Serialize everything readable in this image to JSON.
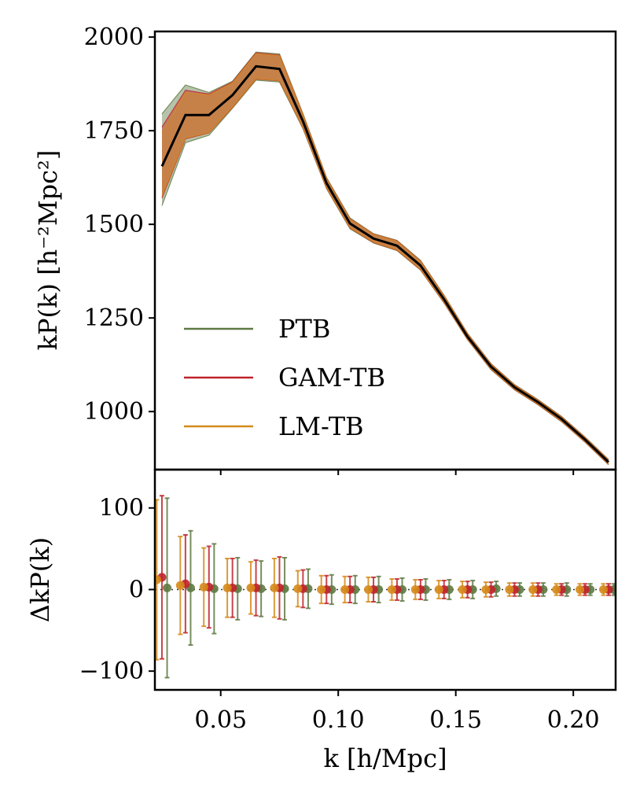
{
  "chart_data": [
    {
      "type": "line",
      "panel": "top",
      "xlabel": "",
      "ylabel": "kP(k) [h⁻²Mpc²]",
      "xlim": [
        0.022,
        0.218
      ],
      "ylim": [
        845,
        2015
      ],
      "yticks": [
        1000,
        1250,
        1500,
        1750,
        2000
      ],
      "yticklabels": [
        "1000",
        "1250",
        "1500",
        "1750",
        "2000"
      ],
      "legend_position": "lower-left",
      "x": [
        0.025,
        0.035,
        0.045,
        0.055,
        0.065,
        0.075,
        0.085,
        0.095,
        0.105,
        0.115,
        0.125,
        0.135,
        0.145,
        0.155,
        0.165,
        0.175,
        0.185,
        0.195,
        0.205,
        0.215
      ],
      "truth": {
        "name": "truth",
        "color": "#000000",
        "values": [
          1655,
          1792,
          1792,
          1845,
          1922,
          1915,
          1775,
          1610,
          1502,
          1462,
          1443,
          1390,
          1300,
          1200,
          1120,
          1065,
          1025,
          980,
          925,
          865
        ]
      },
      "series": [
        {
          "name": "PTB",
          "color": "#5e7a43",
          "lower": [
            1550,
            1718,
            1738,
            1810,
            1885,
            1880,
            1755,
            1595,
            1488,
            1450,
            1430,
            1378,
            1290,
            1192,
            1112,
            1058,
            1018,
            973,
            918,
            858
          ],
          "upper": [
            1795,
            1872,
            1852,
            1882,
            1960,
            1955,
            1795,
            1625,
            1517,
            1475,
            1457,
            1404,
            1311,
            1209,
            1128,
            1072,
            1032,
            987,
            932,
            872
          ]
        },
        {
          "name": "GAM-TB",
          "color": "#c0232b",
          "lower": [
            1570,
            1728,
            1744,
            1812,
            1888,
            1883,
            1757,
            1597,
            1490,
            1451,
            1431,
            1379,
            1291,
            1193,
            1113,
            1059,
            1019,
            974,
            919,
            859
          ],
          "upper": [
            1760,
            1858,
            1848,
            1880,
            1958,
            1952,
            1793,
            1623,
            1515,
            1474,
            1456,
            1402,
            1310,
            1208,
            1127,
            1071,
            1031,
            986,
            931,
            871
          ]
        },
        {
          "name": "LM-TB",
          "color": "#d58a1a",
          "lower": [
            1575,
            1730,
            1745,
            1813,
            1889,
            1884,
            1758,
            1598,
            1491,
            1452,
            1432,
            1380,
            1292,
            1194,
            1114,
            1060,
            1020,
            975,
            920,
            860
          ],
          "upper": [
            1745,
            1852,
            1845,
            1878,
            1956,
            1950,
            1792,
            1622,
            1514,
            1473,
            1455,
            1401,
            1309,
            1207,
            1126,
            1070,
            1030,
            985,
            930,
            870
          ]
        }
      ]
    },
    {
      "type": "scatter",
      "panel": "bottom",
      "xlabel": "k [h/Mpc]",
      "ylabel": "ΔkP(k)",
      "xlim": [
        0.022,
        0.218
      ],
      "ylim": [
        -123,
        147
      ],
      "xticks": [
        0.05,
        0.1,
        0.15,
        0.2
      ],
      "xticklabels": [
        "0.05",
        "0.10",
        "0.15",
        "0.20"
      ],
      "yticks": [
        -100,
        0,
        100
      ],
      "yticklabels": [
        "−100",
        "0",
        "100"
      ],
      "reference_line": 0,
      "x": [
        0.025,
        0.035,
        0.045,
        0.055,
        0.065,
        0.075,
        0.085,
        0.095,
        0.105,
        0.115,
        0.125,
        0.135,
        0.145,
        0.155,
        0.165,
        0.175,
        0.185,
        0.195,
        0.205,
        0.215
      ],
      "x_offsets": {
        "PTB": 0.0022,
        "GAM-TB": 0.0,
        "LM-TB": -0.0022
      },
      "series": [
        {
          "name": "PTB",
          "color": "#5e7a43",
          "values": [
            2,
            2,
            1,
            1,
            1,
            1,
            1,
            0,
            0,
            0,
            0,
            0,
            0,
            0,
            1,
            0,
            0,
            0,
            0,
            0
          ],
          "errors": [
            110,
            70,
            55,
            38,
            34,
            38,
            24,
            18,
            17,
            16,
            14,
            13,
            12,
            11,
            9,
            8,
            8,
            8,
            7,
            7
          ]
        },
        {
          "name": "GAM-TB",
          "color": "#c0232b",
          "values": [
            15,
            7,
            3,
            2,
            2,
            2,
            1,
            0,
            0,
            0,
            0,
            0,
            0,
            0,
            0,
            0,
            0,
            0,
            0,
            0
          ],
          "errors": [
            100,
            60,
            50,
            36,
            34,
            38,
            23,
            17,
            16,
            15,
            13,
            12,
            11,
            10,
            9,
            8,
            8,
            7,
            7,
            7
          ]
        },
        {
          "name": "LM-TB",
          "color": "#d58a1a",
          "values": [
            12,
            5,
            3,
            2,
            2,
            2,
            1,
            0,
            0,
            0,
            0,
            0,
            0,
            0,
            0,
            0,
            0,
            0,
            0,
            0
          ],
          "errors": [
            98,
            60,
            48,
            36,
            32,
            36,
            22,
            17,
            16,
            15,
            13,
            12,
            11,
            10,
            9,
            8,
            8,
            7,
            7,
            7
          ]
        }
      ]
    }
  ]
}
